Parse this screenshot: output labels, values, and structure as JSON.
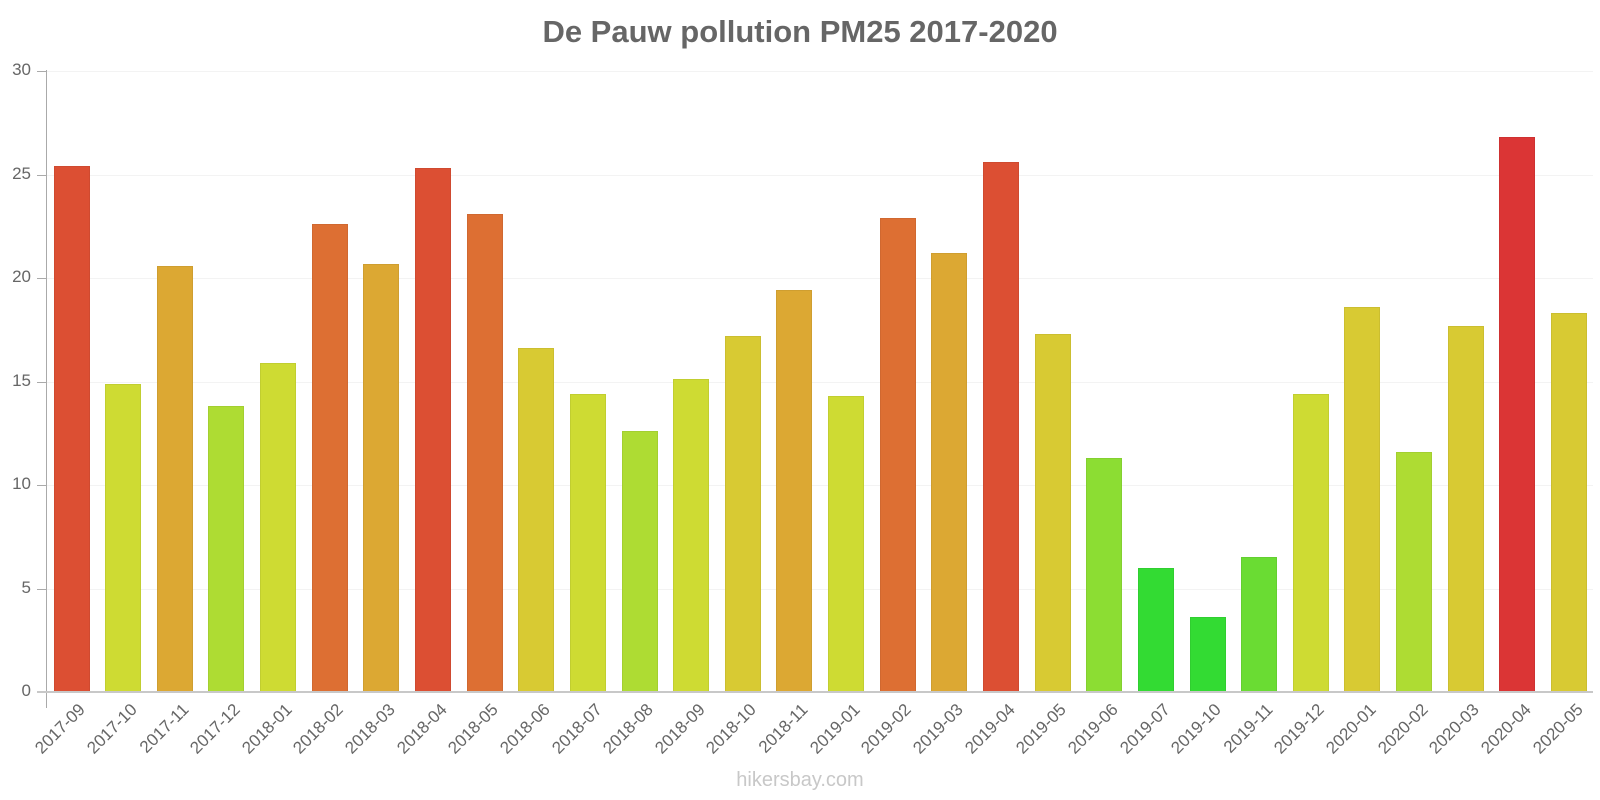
{
  "chart_data": {
    "type": "bar",
    "title": "De Pauw pollution PM25 2017-2020",
    "xlabel": "",
    "ylabel": "",
    "ylim": [
      0,
      30
    ],
    "yticks": [
      0,
      5,
      10,
      15,
      20,
      25,
      30
    ],
    "grid": true,
    "legend": null,
    "categories": [
      "2017-09",
      "2017-10",
      "2017-11",
      "2017-12",
      "2018-01",
      "2018-02",
      "2018-03",
      "2018-04",
      "2018-05",
      "2018-06",
      "2018-07",
      "2018-08",
      "2018-09",
      "2018-10",
      "2018-11",
      "2019-01",
      "2019-02",
      "2019-03",
      "2019-04",
      "2019-05",
      "2019-06",
      "2019-07",
      "2019-10",
      "2019-11",
      "2019-12",
      "2020-01",
      "2020-02",
      "2020-03",
      "2020-04",
      "2020-05"
    ],
    "values": [
      25.4,
      14.9,
      20.6,
      13.8,
      15.9,
      22.6,
      20.7,
      25.3,
      23.1,
      16.6,
      14.4,
      12.6,
      15.1,
      17.2,
      19.4,
      14.3,
      22.9,
      21.2,
      25.6,
      17.3,
      11.3,
      6.0,
      3.6,
      6.5,
      14.4,
      18.6,
      11.6,
      17.7,
      26.8,
      18.3
    ],
    "colors": [
      "#dc4f33",
      "#cedb33",
      "#dca833",
      "#aedc33",
      "#cedb33",
      "#dd6f33",
      "#dca833",
      "#dc4f33",
      "#dd6f33",
      "#d8ca33",
      "#cedb33",
      "#aedc33",
      "#cedb33",
      "#d8ca33",
      "#dca833",
      "#cedb33",
      "#dd6f33",
      "#dca833",
      "#dc4f33",
      "#d8ca33",
      "#8cdd33",
      "#33db33",
      "#33db33",
      "#6adc33",
      "#cedb33",
      "#d8ca33",
      "#aedc33",
      "#d8ca33",
      "#db3535",
      "#d8ca33"
    ]
  },
  "watermark": "hikersbay.com"
}
